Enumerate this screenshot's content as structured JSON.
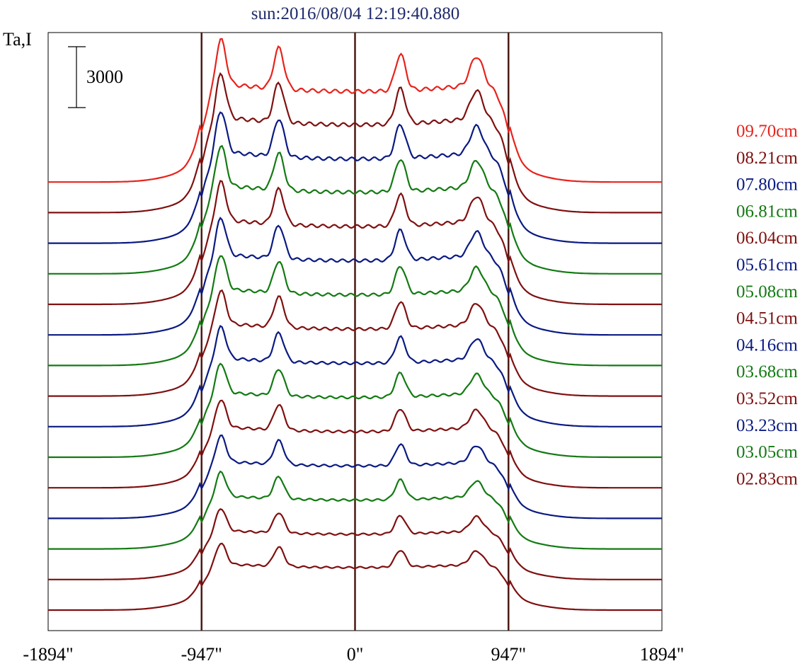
{
  "chart_data": {
    "type": "line",
    "title": "sun:2016/08/04 12:19:40.880",
    "ylabel": "Ta,I",
    "scale_bar_label": "3000",
    "scale_bar_value": 3000,
    "x_ticks": [
      {
        "value": -1894,
        "label": "-1894\""
      },
      {
        "value": -947,
        "label": "-947\""
      },
      {
        "value": 0,
        "label": "0\""
      },
      {
        "value": 947,
        "label": "947\""
      },
      {
        "value": 1894,
        "label": "1894\""
      }
    ],
    "xlim": [
      -1894,
      1894
    ],
    "vertical_lines": [
      -947,
      0,
      947
    ],
    "grid": false,
    "legend_position": "right",
    "series": [
      {
        "name": "09.70cm",
        "color": "#e8231c",
        "offset": 14,
        "amp": 1.0
      },
      {
        "name": "08.21cm",
        "color": "#7f1010",
        "offset": 13,
        "amp": 0.97
      },
      {
        "name": "07.80cm",
        "color": "#0a1a82",
        "offset": 12,
        "amp": 0.93
      },
      {
        "name": "06.81cm",
        "color": "#137a13",
        "offset": 11,
        "amp": 0.9
      },
      {
        "name": "06.04cm",
        "color": "#7f1010",
        "offset": 10,
        "amp": 0.86
      },
      {
        "name": "05.61cm",
        "color": "#0a1a82",
        "offset": 9,
        "amp": 0.82
      },
      {
        "name": "05.08cm",
        "color": "#137a13",
        "offset": 8,
        "amp": 0.78
      },
      {
        "name": "04.51cm",
        "color": "#7f1010",
        "offset": 7,
        "amp": 0.74
      },
      {
        "name": "04.16cm",
        "color": "#0a1a82",
        "offset": 6,
        "amp": 0.7
      },
      {
        "name": "03.68cm",
        "color": "#137a13",
        "offset": 5,
        "amp": 0.66
      },
      {
        "name": "03.52cm",
        "color": "#7f1010",
        "offset": 4,
        "amp": 0.62
      },
      {
        "name": "03.23cm",
        "color": "#0a1a82",
        "offset": 3,
        "amp": 0.58
      },
      {
        "name": "03.05cm",
        "color": "#137a13",
        "offset": 2,
        "amp": 0.54
      },
      {
        "name": "02.83cm",
        "color": "#7f1010",
        "offset": 1,
        "amp": 0.5
      },
      {
        "name": "",
        "color": "#7f1010",
        "offset": 0,
        "amp": 0.47
      }
    ]
  }
}
